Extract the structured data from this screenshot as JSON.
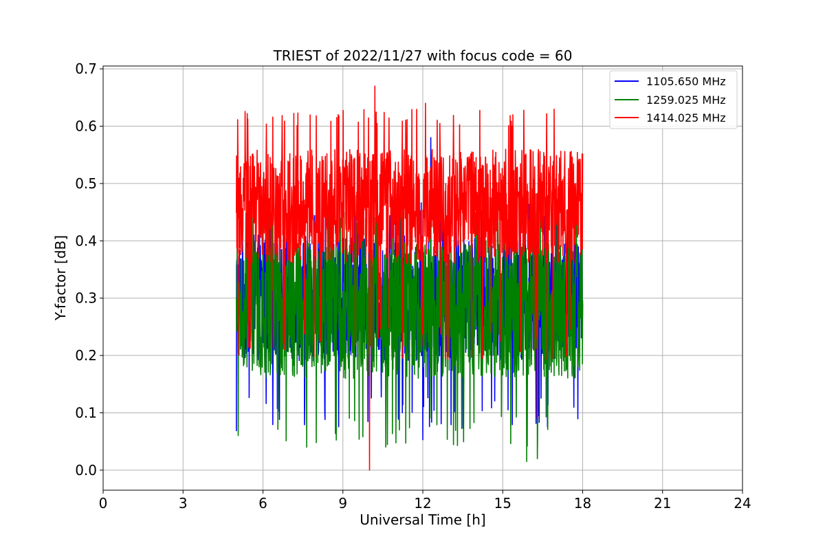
{
  "chart_data": {
    "type": "line",
    "title": "TRIEST of 2022/11/27 with focus code = 60",
    "xlabel": "Universal Time [h]",
    "ylabel": "Y-factor [dB]",
    "xlim": [
      0,
      24
    ],
    "ylim": [
      -0.035,
      0.705
    ],
    "xticks": [
      0,
      3,
      6,
      9,
      12,
      15,
      18,
      21,
      24
    ],
    "yticks": [
      0.0,
      0.1,
      0.2,
      0.3,
      0.4,
      0.5,
      0.6,
      0.7
    ],
    "xtick_labels": [
      "0",
      "3",
      "6",
      "9",
      "12",
      "15",
      "18",
      "21",
      "24"
    ],
    "ytick_labels": [
      "0.0",
      "0.1",
      "0.2",
      "0.3",
      "0.4",
      "0.5",
      "0.6",
      "0.7"
    ],
    "grid": true,
    "legend_position": "top-right",
    "data_range_x": [
      5.0,
      18.0
    ],
    "series": [
      {
        "name": "1105.650 MHz",
        "color": "#0000ff",
        "mean": 0.3,
        "spread": 0.11,
        "envelope_low": 0.13,
        "envelope_high": 0.44,
        "marked_points": [
          [
            5.0,
            0.068
          ],
          [
            12.0,
            0.053
          ],
          [
            12.3,
            0.58
          ],
          [
            16.3,
            0.09
          ]
        ]
      },
      {
        "name": "1259.025 MHz",
        "color": "#008000",
        "mean": 0.28,
        "spread": 0.12,
        "envelope_low": 0.1,
        "envelope_high": 0.43,
        "marked_points": [
          [
            8.0,
            0.048
          ],
          [
            13.3,
            0.043
          ],
          [
            15.9,
            0.015
          ],
          [
            16.3,
            0.02
          ]
        ]
      },
      {
        "name": "1414.025 MHz",
        "color": "#ff0000",
        "mean": 0.46,
        "spread": 0.1,
        "envelope_low": 0.25,
        "envelope_high": 0.6,
        "marked_points": [
          [
            10.0,
            0.0
          ],
          [
            10.2,
            0.67
          ],
          [
            12.1,
            0.64
          ],
          [
            16.3,
            0.09
          ]
        ]
      }
    ]
  }
}
